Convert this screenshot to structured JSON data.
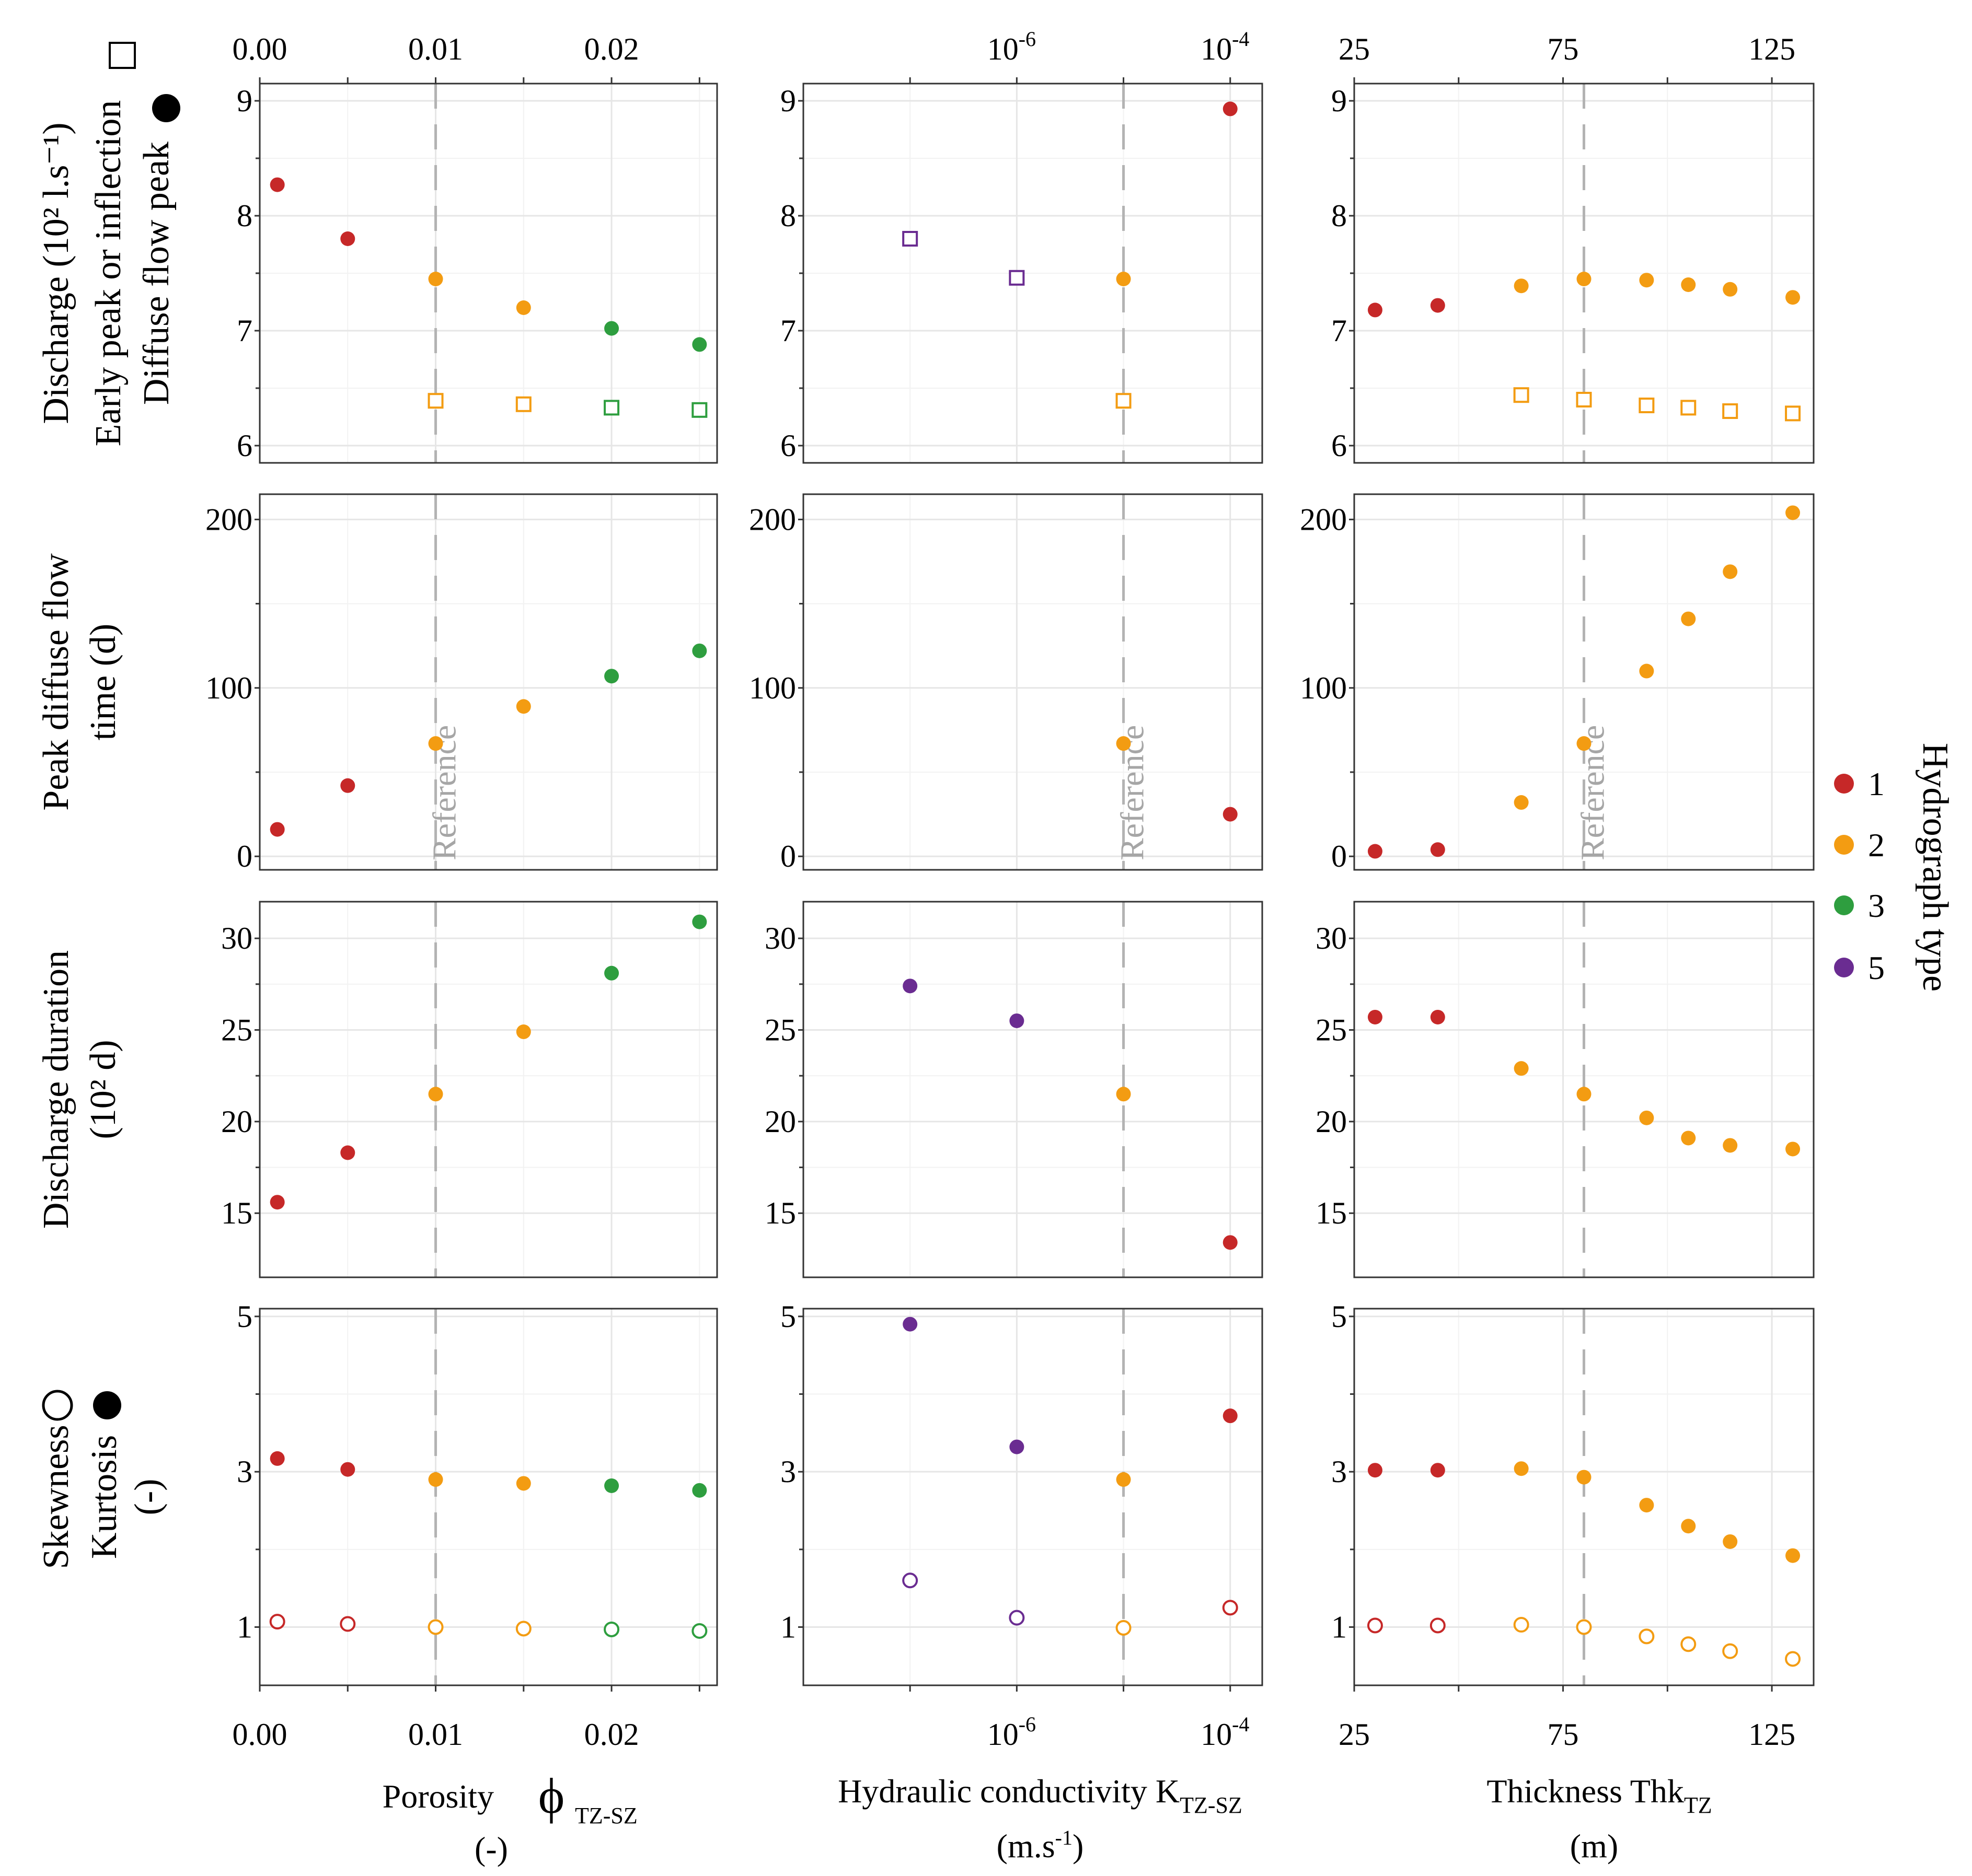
{
  "legend": {
    "title": "Hydrograph type",
    "entries": [
      {
        "label": "1",
        "color": "#c62828"
      },
      {
        "label": "2",
        "color": "#f39c12"
      },
      {
        "label": "3",
        "color": "#2e9e3f"
      },
      {
        "label": "5",
        "color": "#6a2c91"
      }
    ]
  },
  "reference_label": "Reference",
  "columns": [
    {
      "scale": "linear",
      "domain": [
        0,
        0.026
      ],
      "ticks": [
        {
          "v": 0,
          "label": "0.00"
        },
        {
          "v": 0.01,
          "label": "0.01"
        },
        {
          "v": 0.02,
          "label": "0.02"
        }
      ],
      "minor": [
        0.005,
        0.015,
        0.025
      ],
      "reference": 0.01,
      "xlabel_line1": "Porosity",
      "xlabel_symbol": "ϕ",
      "xlabel_sub": "TZ-SZ",
      "xlabel_line2": "(-)"
    },
    {
      "scale": "log10",
      "domain": [
        -8,
        -3.7
      ],
      "ticks": [
        {
          "v": -6,
          "base": "10",
          "exp": "-6"
        },
        {
          "v": -4,
          "base": "10",
          "exp": "-4"
        }
      ],
      "minor": [
        -7,
        -5
      ],
      "reference": -5,
      "xlabel_line1": "Hydraulic conductivity K",
      "xlabel_sub": "TZ-SZ",
      "xlabel_line2_pre": "(m.s",
      "xlabel_line2_exp": "-1",
      "xlabel_line2_post": ")"
    },
    {
      "scale": "linear",
      "domain": [
        25,
        135
      ],
      "ticks": [
        {
          "v": 25,
          "label": "25"
        },
        {
          "v": 75,
          "label": "75"
        },
        {
          "v": 125,
          "label": "125"
        }
      ],
      "minor": [
        50,
        100
      ],
      "reference": 80,
      "xlabel_line1": "Thickness Thk",
      "xlabel_sub": "TZ",
      "xlabel_line2": "(m)"
    }
  ],
  "rows": [
    {
      "ylabel_lines": [
        "Discharge (10² l.s⁻¹)",
        "Early peak or inflection",
        "Diffuse flow peak"
      ],
      "ydomain": [
        5.85,
        9.15
      ],
      "yticks": [
        6,
        7,
        8,
        9
      ],
      "yminor": [
        6.5,
        7.5,
        8.5
      ],
      "reference_text": false
    },
    {
      "ylabel_lines": [
        "Peak diffuse flow",
        "time (d)"
      ],
      "ydomain": [
        -8,
        215
      ],
      "yticks": [
        0,
        100,
        200
      ],
      "yminor": [
        50,
        150
      ],
      "reference_text": true
    },
    {
      "ylabel_lines": [
        "Discharge duration",
        "(10² d)"
      ],
      "ydomain": [
        11.5,
        32
      ],
      "yticks": [
        15,
        20,
        25,
        30
      ],
      "yminor": [
        17.5,
        22.5,
        27.5
      ],
      "reference_text": false
    },
    {
      "ylabel_lines": [
        "Skewness",
        "Kurtosis",
        "(-)"
      ],
      "ydomain": [
        0.25,
        5.1
      ],
      "yticks": [
        1,
        3,
        5
      ],
      "yminor": [
        2,
        4
      ],
      "reference_text": false
    }
  ],
  "chart_data": [
    {
      "type": "scatter",
      "panel": "row1-col1",
      "xlabel": "Porosity ϕTZ-SZ (-)",
      "ylabel": "Discharge (10² l.s⁻¹)",
      "series": [
        {
          "name": "Diffuse flow peak",
          "marker": "filled-circle",
          "points": [
            {
              "x": 0.001,
              "y": 8.27,
              "type": "1"
            },
            {
              "x": 0.005,
              "y": 7.8,
              "type": "1"
            },
            {
              "x": 0.01,
              "y": 7.45,
              "type": "2"
            },
            {
              "x": 0.015,
              "y": 7.2,
              "type": "2"
            },
            {
              "x": 0.02,
              "y": 7.02,
              "type": "3"
            },
            {
              "x": 0.025,
              "y": 6.88,
              "type": "3"
            }
          ]
        },
        {
          "name": "Early peak or inflection",
          "marker": "open-square",
          "points": [
            {
              "x": 0.01,
              "y": 6.39,
              "type": "2"
            },
            {
              "x": 0.015,
              "y": 6.36,
              "type": "2"
            },
            {
              "x": 0.02,
              "y": 6.33,
              "type": "3"
            },
            {
              "x": 0.025,
              "y": 6.31,
              "type": "3"
            }
          ]
        }
      ]
    },
    {
      "type": "scatter",
      "panel": "row1-col2",
      "xlabel": "Hydraulic conductivity KTZ-SZ (m.s⁻¹) (log10)",
      "ylabel": "Discharge (10² l.s⁻¹)",
      "series": [
        {
          "name": "Diffuse flow peak",
          "marker": "filled-circle",
          "points": [
            {
              "x": -5,
              "y": 7.45,
              "type": "2"
            },
            {
              "x": -4,
              "y": 8.93,
              "type": "1"
            }
          ]
        },
        {
          "name": "Early peak or inflection",
          "marker": "open-square",
          "points": [
            {
              "x": -7,
              "y": 7.8,
              "type": "5"
            },
            {
              "x": -6,
              "y": 7.46,
              "type": "5"
            },
            {
              "x": -5,
              "y": 6.39,
              "type": "2"
            }
          ]
        }
      ]
    },
    {
      "type": "scatter",
      "panel": "row1-col3",
      "xlabel": "Thickness ThkTZ (m)",
      "ylabel": "Discharge (10² l.s⁻¹)",
      "series": [
        {
          "name": "Diffuse flow peak",
          "marker": "filled-circle",
          "points": [
            {
              "x": 30,
              "y": 7.18,
              "type": "1"
            },
            {
              "x": 45,
              "y": 7.22,
              "type": "1"
            },
            {
              "x": 65,
              "y": 7.39,
              "type": "2"
            },
            {
              "x": 80,
              "y": 7.45,
              "type": "2"
            },
            {
              "x": 95,
              "y": 7.44,
              "type": "2"
            },
            {
              "x": 105,
              "y": 7.4,
              "type": "2"
            },
            {
              "x": 115,
              "y": 7.36,
              "type": "2"
            },
            {
              "x": 130,
              "y": 7.29,
              "type": "2"
            }
          ]
        },
        {
          "name": "Early peak or inflection",
          "marker": "open-square",
          "points": [
            {
              "x": 65,
              "y": 6.44,
              "type": "2"
            },
            {
              "x": 80,
              "y": 6.4,
              "type": "2"
            },
            {
              "x": 95,
              "y": 6.35,
              "type": "2"
            },
            {
              "x": 105,
              "y": 6.33,
              "type": "2"
            },
            {
              "x": 115,
              "y": 6.3,
              "type": "2"
            },
            {
              "x": 130,
              "y": 6.28,
              "type": "2"
            }
          ]
        }
      ]
    },
    {
      "type": "scatter",
      "panel": "row2-col1",
      "xlabel": "Porosity ϕTZ-SZ (-)",
      "ylabel": "Peak diffuse flow time (d)",
      "series": [
        {
          "name": "Peak diffuse flow time",
          "marker": "filled-circle",
          "points": [
            {
              "x": 0.001,
              "y": 16,
              "type": "1"
            },
            {
              "x": 0.005,
              "y": 42,
              "type": "1"
            },
            {
              "x": 0.01,
              "y": 67,
              "type": "2"
            },
            {
              "x": 0.015,
              "y": 89,
              "type": "2"
            },
            {
              "x": 0.02,
              "y": 107,
              "type": "3"
            },
            {
              "x": 0.025,
              "y": 122,
              "type": "3"
            }
          ]
        }
      ]
    },
    {
      "type": "scatter",
      "panel": "row2-col2",
      "xlabel": "Hydraulic conductivity KTZ-SZ (m.s⁻¹) (log10)",
      "ylabel": "Peak diffuse flow time (d)",
      "series": [
        {
          "name": "Peak diffuse flow time",
          "marker": "filled-circle",
          "points": [
            {
              "x": -5,
              "y": 67,
              "type": "2"
            },
            {
              "x": -4,
              "y": 25,
              "type": "1"
            }
          ]
        }
      ]
    },
    {
      "type": "scatter",
      "panel": "row2-col3",
      "xlabel": "Thickness ThkTZ (m)",
      "ylabel": "Peak diffuse flow time (d)",
      "series": [
        {
          "name": "Peak diffuse flow time",
          "marker": "filled-circle",
          "points": [
            {
              "x": 30,
              "y": 3,
              "type": "1"
            },
            {
              "x": 45,
              "y": 4,
              "type": "1"
            },
            {
              "x": 65,
              "y": 32,
              "type": "2"
            },
            {
              "x": 80,
              "y": 67,
              "type": "2"
            },
            {
              "x": 95,
              "y": 110,
              "type": "2"
            },
            {
              "x": 105,
              "y": 141,
              "type": "2"
            },
            {
              "x": 115,
              "y": 169,
              "type": "2"
            },
            {
              "x": 130,
              "y": 204,
              "type": "2"
            }
          ]
        }
      ]
    },
    {
      "type": "scatter",
      "panel": "row3-col1",
      "xlabel": "Porosity ϕTZ-SZ (-)",
      "ylabel": "Discharge duration (10² d)",
      "series": [
        {
          "name": "Discharge duration",
          "marker": "filled-circle",
          "points": [
            {
              "x": 0.001,
              "y": 15.6,
              "type": "1"
            },
            {
              "x": 0.005,
              "y": 18.3,
              "type": "1"
            },
            {
              "x": 0.01,
              "y": 21.5,
              "type": "2"
            },
            {
              "x": 0.015,
              "y": 24.9,
              "type": "2"
            },
            {
              "x": 0.02,
              "y": 28.1,
              "type": "3"
            },
            {
              "x": 0.025,
              "y": 30.9,
              "type": "3"
            }
          ]
        }
      ]
    },
    {
      "type": "scatter",
      "panel": "row3-col2",
      "xlabel": "Hydraulic conductivity KTZ-SZ (m.s⁻¹) (log10)",
      "ylabel": "Discharge duration (10² d)",
      "series": [
        {
          "name": "Discharge duration",
          "marker": "filled-circle",
          "points": [
            {
              "x": -7,
              "y": 27.4,
              "type": "5"
            },
            {
              "x": -6,
              "y": 25.5,
              "type": "5"
            },
            {
              "x": -5,
              "y": 21.5,
              "type": "2"
            },
            {
              "x": -4,
              "y": 13.4,
              "type": "1"
            }
          ]
        }
      ]
    },
    {
      "type": "scatter",
      "panel": "row3-col3",
      "xlabel": "Thickness ThkTZ (m)",
      "ylabel": "Discharge duration (10² d)",
      "series": [
        {
          "name": "Discharge duration",
          "marker": "filled-circle",
          "points": [
            {
              "x": 30,
              "y": 25.7,
              "type": "1"
            },
            {
              "x": 45,
              "y": 25.7,
              "type": "1"
            },
            {
              "x": 65,
              "y": 22.9,
              "type": "2"
            },
            {
              "x": 80,
              "y": 21.5,
              "type": "2"
            },
            {
              "x": 95,
              "y": 20.2,
              "type": "2"
            },
            {
              "x": 105,
              "y": 19.1,
              "type": "2"
            },
            {
              "x": 115,
              "y": 18.7,
              "type": "2"
            },
            {
              "x": 130,
              "y": 18.5,
              "type": "2"
            }
          ]
        }
      ]
    },
    {
      "type": "scatter",
      "panel": "row4-col1",
      "xlabel": "Porosity ϕTZ-SZ (-)",
      "ylabel": "Skewness / Kurtosis (-)",
      "series": [
        {
          "name": "Kurtosis",
          "marker": "filled-circle",
          "points": [
            {
              "x": 0.001,
              "y": 3.17,
              "type": "1"
            },
            {
              "x": 0.005,
              "y": 3.03,
              "type": "1"
            },
            {
              "x": 0.01,
              "y": 2.9,
              "type": "2"
            },
            {
              "x": 0.015,
              "y": 2.85,
              "type": "2"
            },
            {
              "x": 0.02,
              "y": 2.82,
              "type": "3"
            },
            {
              "x": 0.025,
              "y": 2.76,
              "type": "3"
            }
          ]
        },
        {
          "name": "Skewness",
          "marker": "open-circle",
          "points": [
            {
              "x": 0.001,
              "y": 1.07,
              "type": "1"
            },
            {
              "x": 0.005,
              "y": 1.04,
              "type": "1"
            },
            {
              "x": 0.01,
              "y": 1.0,
              "type": "2"
            },
            {
              "x": 0.015,
              "y": 0.98,
              "type": "2"
            },
            {
              "x": 0.02,
              "y": 0.97,
              "type": "3"
            },
            {
              "x": 0.025,
              "y": 0.95,
              "type": "3"
            }
          ]
        }
      ]
    },
    {
      "type": "scatter",
      "panel": "row4-col2",
      "xlabel": "Hydraulic conductivity KTZ-SZ (m.s⁻¹) (log10)",
      "ylabel": "Skewness / Kurtosis (-)",
      "series": [
        {
          "name": "Kurtosis",
          "marker": "filled-circle",
          "points": [
            {
              "x": -7,
              "y": 4.9,
              "type": "5"
            },
            {
              "x": -6,
              "y": 3.32,
              "type": "5"
            },
            {
              "x": -5,
              "y": 2.9,
              "type": "2"
            },
            {
              "x": -4,
              "y": 3.72,
              "type": "1"
            }
          ]
        },
        {
          "name": "Skewness",
          "marker": "open-circle",
          "points": [
            {
              "x": -7,
              "y": 1.6,
              "type": "5"
            },
            {
              "x": -6,
              "y": 1.12,
              "type": "5"
            },
            {
              "x": -5,
              "y": 0.99,
              "type": "2"
            },
            {
              "x": -4,
              "y": 1.25,
              "type": "1"
            }
          ]
        }
      ]
    },
    {
      "type": "scatter",
      "panel": "row4-col3",
      "xlabel": "Thickness ThkTZ (m)",
      "ylabel": "Skewness / Kurtosis (-)",
      "series": [
        {
          "name": "Kurtosis",
          "marker": "filled-circle",
          "points": [
            {
              "x": 30,
              "y": 3.02,
              "type": "1"
            },
            {
              "x": 45,
              "y": 3.02,
              "type": "1"
            },
            {
              "x": 65,
              "y": 3.04,
              "type": "2"
            },
            {
              "x": 80,
              "y": 2.93,
              "type": "2"
            },
            {
              "x": 95,
              "y": 2.57,
              "type": "2"
            },
            {
              "x": 105,
              "y": 2.3,
              "type": "2"
            },
            {
              "x": 115,
              "y": 2.1,
              "type": "2"
            },
            {
              "x": 130,
              "y": 1.92,
              "type": "2"
            }
          ]
        },
        {
          "name": "Skewness",
          "marker": "open-circle",
          "points": [
            {
              "x": 30,
              "y": 1.02,
              "type": "1"
            },
            {
              "x": 45,
              "y": 1.02,
              "type": "1"
            },
            {
              "x": 65,
              "y": 1.03,
              "type": "2"
            },
            {
              "x": 80,
              "y": 1.0,
              "type": "2"
            },
            {
              "x": 95,
              "y": 0.88,
              "type": "2"
            },
            {
              "x": 105,
              "y": 0.78,
              "type": "2"
            },
            {
              "x": 115,
              "y": 0.69,
              "type": "2"
            },
            {
              "x": 130,
              "y": 0.59,
              "type": "2"
            }
          ]
        }
      ]
    }
  ]
}
